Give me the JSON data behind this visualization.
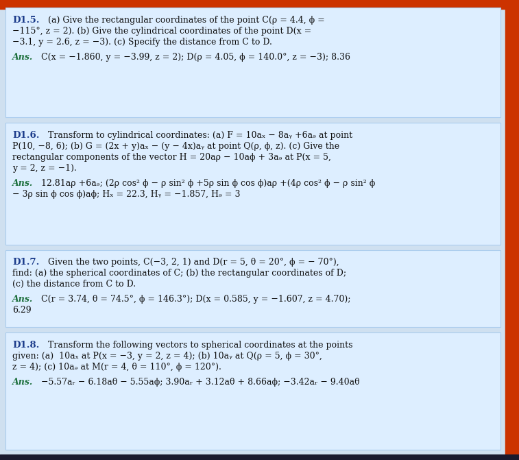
{
  "bg_color": "#cfe0f0",
  "box_bg": "#ddeeff",
  "box_border": "#aaccee",
  "title_color": "#1a3a8a",
  "ans_color": "#1a6e3a",
  "text_color": "#111111",
  "top_bar_color": "#cc3300",
  "right_bar_color": "#cc3300",
  "figsize": [
    7.57,
    6.71
  ],
  "dpi": 100,
  "blocks": [
    {
      "id": "D1.5",
      "q_lines": [
        "(a) Give the rectangular coordinates of the point C(ρ = 4.4, ϕ =",
        "−115°, z = 2). (b) Give the cylindrical coordinates of the point D(x =",
        "−3.1, y = 2.6, z = −3). (c) Specify the distance from C to D."
      ],
      "a_lines": [
        "C(x = −1.860, y = −3.99, z = 2); D(ρ = 4.05, ϕ = 140.0°, z = −3); 8.36"
      ]
    },
    {
      "id": "D1.6",
      "q_lines": [
        "Transform to cylindrical coordinates: (a) F = 10ax − 8ay +6az at point",
        "P(10, −8, 6); (b) G = (2x + y)ax − (y − 4x)ay at point Q(ρ, ϕ, z). (c) Give the",
        "rectangular components of the vector H = 20aρ −  10aϕ + 3az at P(x = 5,",
        "y = 2, z = −1)."
      ],
      "a_lines": [
        "12.81aρ +6az; (2ρ cos² ϕ − ρ sin² ϕ +5ρ sin ϕ cos ϕ)aρ +(4ρ cos² ϕ − ρ sin² ϕ",
        "− 3ρ sin ϕ cos ϕ)aϕ; Hx = 22.3, Hy = −1.857, Hz = 3"
      ]
    },
    {
      "id": "D1.7",
      "q_lines": [
        "Given the two points, C(−3, 2, 1) and D(r = 5, θ = 20°, ϕ = − 70°),",
        "find: (a) the spherical coordinates of C; (b) the rectangular coordinates of D;",
        "(c) the distance from C to D."
      ],
      "a_lines": [
        "C(r = 3.74, θ = 74.5°, ϕ = 146.3°); D(x = 0.585, y = −1.607, z = 4.70);",
        "6.29"
      ]
    },
    {
      "id": "D1.8",
      "q_lines": [
        "Transform the following vectors to spherical coordinates at the points",
        "given: (a)  10ax at P(x = −3, y = 2, z = 4); (b) 10ay at Q(ρ = 5, ϕ = 30°,",
        "z = 4); (c) 10az at M(r = 4, θ = 110°, ϕ = 120°)."
      ],
      "a_lines": [
        "−5.57ar − 6.18aθ − 5.55aϕ; 3.90ar + 3.12aθ + 8.66aϕ; −3.42ar − 9.40aθ"
      ]
    }
  ]
}
